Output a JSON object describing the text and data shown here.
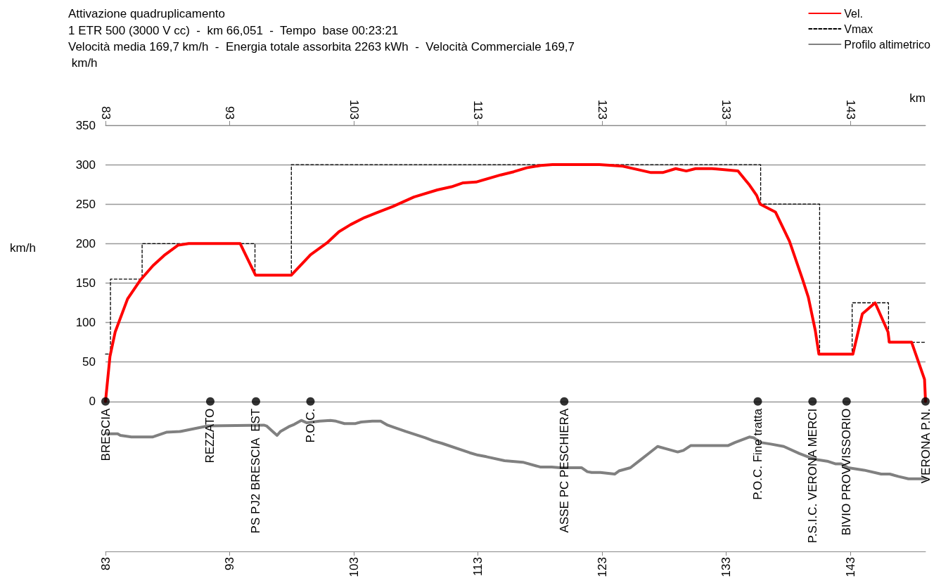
{
  "chart_data": {
    "type": "line",
    "title": "Attivazione quadruplicamento",
    "subtitle": "1 ETR 500 (3000 V cc)  -  km 66,051  -  Tempo  base 00:23:21\nVelocità media 169,7 km/h  -  Energia totale assorbita 2263 kWh  -  Velocità Commerciale 169,7 km/h",
    "ylabel": "km/h",
    "x2label": "km",
    "xlim": [
      83,
      149.05
    ],
    "xticks": [
      83,
      93,
      103,
      113,
      123,
      133,
      143
    ],
    "x2lim": [
      83,
      149.05
    ],
    "x2ticks": [
      83,
      93,
      103,
      113,
      123,
      133,
      143
    ],
    "ylim": [
      -190,
      350
    ],
    "yticks": [
      0,
      50,
      100,
      150,
      200,
      250,
      300,
      350
    ],
    "grid": "y",
    "legend": "top right",
    "series": [
      {
        "name": "Vel.",
        "type": "line",
        "color": "#ff0000",
        "marker": "none",
        "line_style": "solid",
        "x": [
          83.0,
          83.36,
          83.78,
          84.78,
          85.82,
          86.82,
          87.8,
          88.84,
          89.7,
          93.85,
          95.08,
          97.97,
          99.52,
          100.85,
          101.8,
          102.74,
          103.87,
          104.82,
          106.14,
          107.84,
          109.73,
          110.87,
          111.81,
          112.85,
          114.84,
          115.88,
          116.92,
          118.05,
          119.0,
          122.78,
          124.67,
          125.81,
          126.94,
          127.88,
          128.93,
          129.78,
          130.53,
          131.85,
          133.94,
          134.88,
          135.45,
          135.73,
          136.96,
          138.09,
          139.14,
          139.61,
          140.17,
          140.46,
          143.2,
          143.96,
          144.99,
          146.03,
          146.13,
          147.93,
          148.97,
          149.05
        ],
        "values": [
          0,
          57,
          88,
          130,
          154,
          172,
          186,
          198,
          200,
          200,
          160,
          160,
          186,
          201,
          215,
          224,
          233,
          239,
          247,
          259,
          268,
          272,
          277,
          278,
          287,
          291,
          296,
          299,
          300,
          300,
          298,
          294,
          290,
          290,
          295,
          292,
          295,
          295,
          292,
          274,
          261,
          250,
          240,
          203,
          155,
          132,
          90,
          60,
          60,
          111,
          125,
          88,
          75,
          75,
          28,
          0
        ]
      },
      {
        "name": "Vmax",
        "type": "step",
        "color": "#000000",
        "marker": "none",
        "line_style": "dashed",
        "x": [
          83.0,
          83.4,
          85.95,
          95.04,
          97.97,
          135.77,
          140.52,
          143.14,
          146.07,
          149.05
        ],
        "values": [
          60,
          155,
          200,
          160,
          300,
          250,
          60,
          125,
          75,
          75
        ]
      },
      {
        "name": "Profilo altimetrico",
        "type": "line",
        "color": "#808080",
        "marker": "none",
        "line_style": "solid",
        "x": [
          83.1,
          83.98,
          84.2,
          85.09,
          86.78,
          87.9,
          89.02,
          91.26,
          95.75,
          95.97,
          96.53,
          96.82,
          97.09,
          97.76,
          98.21,
          98.77,
          99.22,
          100.23,
          101.12,
          101.57,
          102.25,
          103.14,
          103.59,
          104.49,
          105.16,
          105.72,
          106.28,
          107.18,
          108.75,
          109.42,
          110.09,
          112.34,
          113.0,
          113.68,
          115.14,
          116.62,
          118.01,
          118.93,
          119.62,
          121.36,
          121.81,
          122.16,
          122.86,
          124.01,
          124.36,
          125.28,
          126.09,
          126.66,
          127.47,
          128.17,
          129.09,
          129.55,
          130.13,
          133.13,
          133.7,
          134.86,
          135.21,
          135.78,
          136.59,
          137.63,
          138.9,
          139.71,
          140.4,
          141.21,
          141.78,
          142.25,
          142.82,
          144.09,
          145.48,
          146.17,
          146.86,
          147.67,
          149.05
        ],
        "values": [
          -41,
          -41,
          -43,
          -45,
          -45,
          -39,
          -38,
          -31,
          -30,
          -31,
          -39,
          -43,
          -38,
          -32,
          -29,
          -24,
          -27,
          -25,
          -24,
          -25,
          -28,
          -28,
          -26,
          -25,
          -25,
          -30,
          -33,
          -38,
          -46,
          -50,
          -53,
          -65,
          -68,
          -70,
          -75,
          -77,
          -83,
          -83,
          -84,
          -84,
          -89,
          -90,
          -90,
          -92,
          -88,
          -84,
          -74,
          -67,
          -57,
          -60,
          -64,
          -62,
          -56,
          -56,
          -52,
          -45,
          -46,
          -52,
          -54,
          -57,
          -66,
          -71,
          -74,
          -76,
          -79,
          -79,
          -84,
          -87,
          -92,
          -92,
          -95,
          -98,
          -98
        ]
      },
      {
        "type": "scatter",
        "color": "#000000",
        "marker": "circle",
        "x": [
          83.0,
          91.44,
          95.12,
          99.51,
          119.95,
          135.54,
          139.95,
          142.69,
          149.05
        ],
        "values": [
          0,
          0,
          0,
          0,
          0,
          0,
          0,
          0,
          0
        ]
      }
    ],
    "annotations": [
      {
        "text": "BRESCIA",
        "x": 83.0,
        "y": 0
      },
      {
        "text": "REZZATO",
        "x": 91.44,
        "y": 0
      },
      {
        "text": "PS PJ2 BRESCIA  EST",
        "x": 95.12,
        "y": 0
      },
      {
        "text": "P.O.C.",
        "x": 99.51,
        "y": 0
      },
      {
        "text": "ASSE PC PESCHIERA",
        "x": 119.95,
        "y": 0
      },
      {
        "text": "P.O.C. Fine tratta",
        "x": 135.54,
        "y": 0
      },
      {
        "text": "P.S.I.C. VERONA MERCI",
        "x": 139.95,
        "y": 0
      },
      {
        "text": "BIVIO PROVVISSORIO",
        "x": 142.69,
        "y": 0
      },
      {
        "text": "VERONA P.N.",
        "x": 149.05,
        "y": 0
      }
    ]
  }
}
